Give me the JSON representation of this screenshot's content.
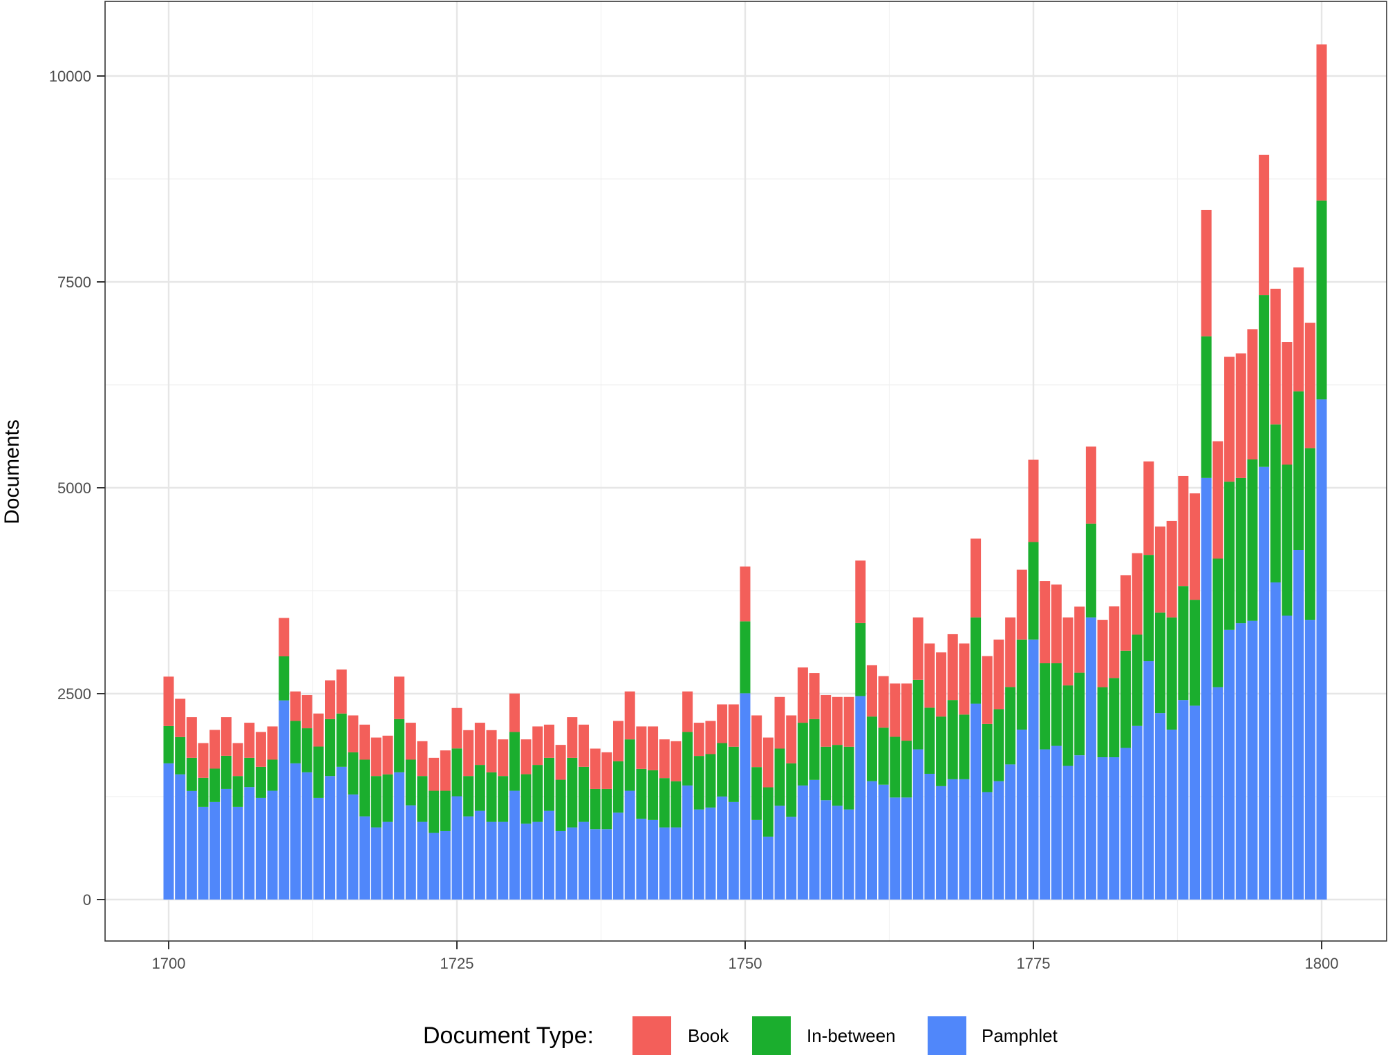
{
  "chart_data": {
    "type": "bar",
    "stacked": true,
    "title": "",
    "xlabel": "",
    "ylabel": "Documents",
    "xlim": [
      1696,
      1804
    ],
    "ylim": [
      -500,
      11000
    ],
    "x_ticks": [
      1700,
      1725,
      1750,
      1775,
      1800
    ],
    "y_ticks": [
      0,
      2500,
      5000,
      7500,
      10000
    ],
    "grid": true,
    "legend": {
      "title": "Document Type:",
      "position": "bottom",
      "entries": [
        "Book",
        "In-between",
        "Pamphlet"
      ]
    },
    "colors": {
      "Book": "#F35F5A",
      "In-between": "#1BAE2E",
      "Pamphlet": "#5087FA"
    },
    "stack_order_bottom_to_top": [
      "Pamphlet",
      "In-between",
      "Book"
    ],
    "x": [
      1700,
      1701,
      1702,
      1703,
      1704,
      1705,
      1706,
      1707,
      1708,
      1709,
      1710,
      1711,
      1712,
      1713,
      1714,
      1715,
      1716,
      1717,
      1718,
      1719,
      1720,
      1721,
      1722,
      1723,
      1724,
      1725,
      1726,
      1727,
      1728,
      1729,
      1730,
      1731,
      1732,
      1733,
      1734,
      1735,
      1736,
      1737,
      1738,
      1739,
      1740,
      1741,
      1742,
      1743,
      1744,
      1745,
      1746,
      1747,
      1748,
      1749,
      1750,
      1751,
      1752,
      1753,
      1754,
      1755,
      1756,
      1757,
      1758,
      1759,
      1760,
      1761,
      1762,
      1763,
      1764,
      1765,
      1766,
      1767,
      1768,
      1769,
      1770,
      1771,
      1772,
      1773,
      1774,
      1775,
      1776,
      1777,
      1778,
      1779,
      1780,
      1781,
      1782,
      1783,
      1784,
      1785,
      1786,
      1787,
      1788,
      1789,
      1790,
      1791,
      1792,
      1793,
      1794,
      1795,
      1796,
      1797,
      1798,
      1799,
      1800
    ],
    "totals": [
      2707,
      2438,
      2214,
      1900,
      2060,
      2214,
      1900,
      2147,
      2035,
      2102,
      3420,
      2527,
      2483,
      2259,
      2662,
      2793,
      2236,
      2124,
      1967,
      1990,
      2707,
      2147,
      1923,
      1721,
      1811,
      2326,
      2057,
      2147,
      2057,
      1945,
      2502,
      1945,
      2102,
      2124,
      1878,
      2214,
      2124,
      1833,
      1788,
      2169,
      2527,
      2102,
      2102,
      1945,
      1923,
      2527,
      2147,
      2169,
      2370,
      2370,
      4044,
      2236,
      1967,
      2460,
      2236,
      2818,
      2751,
      2483,
      2460,
      2460,
      4116,
      2845,
      2713,
      2623,
      2623,
      3426,
      3109,
      3001,
      3222,
      3109,
      4383,
      2956,
      3157,
      3426,
      4005,
      5340,
      3867,
      3825,
      3426,
      3558,
      5500,
      3397,
      3561,
      3939,
      4206,
      5320,
      4529,
      4598,
      5143,
      4932,
      8373,
      5565,
      6590,
      6632,
      6926,
      9044,
      7417,
      6770,
      7675,
      7004,
      10383
    ],
    "series": [
      {
        "name": "Pamphlet",
        "values": [
          1654,
          1520,
          1318,
          1125,
          1184,
          1343,
          1125,
          1366,
          1234,
          1321,
          2418,
          1654,
          1545,
          1234,
          1500,
          1612,
          1276,
          1010,
          876,
          943,
          1545,
          1144,
          943,
          809,
          831,
          1254,
          1010,
          1077,
          943,
          943,
          1321,
          921,
          943,
          1077,
          831,
          876,
          943,
          854,
          854,
          1055,
          1321,
          982,
          966,
          876,
          876,
          1385,
          1094,
          1117,
          1251,
          1184,
          2505,
          966,
          764,
          1139,
          1005,
          1385,
          1453,
          1206,
          1139,
          1094,
          2471,
          1437,
          1395,
          1239,
          1239,
          1824,
          1527,
          1377,
          1461,
          1461,
          2378,
          1305,
          1437,
          1641,
          2063,
          3157,
          1824,
          1866,
          1623,
          1752,
          3426,
          1728,
          1728,
          1841,
          2108,
          2894,
          2264,
          2063,
          2423,
          2354,
          5119,
          2579,
          3274,
          3355,
          3384,
          5254,
          3851,
          3448,
          4245,
          3397,
          6073
        ]
      },
      {
        "name": "In-between",
        "values": [
          453,
          453,
          403,
          353,
          406,
          403,
          375,
          355,
          378,
          378,
          535,
          515,
          535,
          624,
          691,
          647,
          512,
          689,
          624,
          577,
          646,
          555,
          557,
          512,
          490,
          581,
          490,
          558,
          602,
          557,
          714,
          601,
          692,
          644,
          624,
          845,
          669,
          489,
          489,
          624,
          624,
          605,
          604,
          599,
          560,
          650,
          650,
          649,
          649,
          672,
          873,
          643,
          599,
          694,
          649,
          762,
          738,
          650,
          739,
          762,
          886,
          785,
          692,
          737,
          690,
          845,
          803,
          845,
          962,
          785,
          1048,
          827,
          875,
          940,
          1094,
          1184,
          1045,
          1003,
          977,
          1003,
          1139,
          851,
          962,
          1181,
          1109,
          1291,
          1221,
          1363,
          1384,
          1286,
          1720,
          1561,
          1800,
          1764,
          1960,
          2086,
          1918,
          1833,
          1926,
          2084,
          2414
        ]
      },
      {
        "name": "Book",
        "values": [
          600,
          465,
          493,
          422,
          470,
          468,
          400,
          426,
          423,
          403,
          467,
          358,
          403,
          401,
          471,
          534,
          448,
          425,
          467,
          470,
          516,
          448,
          423,
          400,
          490,
          491,
          557,
          512,
          512,
          445,
          467,
          423,
          467,
          403,
          423,
          493,
          512,
          490,
          445,
          490,
          582,
          515,
          532,
          470,
          487,
          492,
          403,
          403,
          470,
          514,
          666,
          627,
          604,
          627,
          582,
          671,
          560,
          627,
          582,
          604,
          759,
          623,
          626,
          647,
          694,
          757,
          779,
          779,
          799,
          863,
          957,
          824,
          845,
          845,
          848,
          999,
          998,
          956,
          826,
          803,
          935,
          818,
          871,
          917,
          989,
          1135,
          1044,
          1172,
          1336,
          1292,
          1534,
          1425,
          1516,
          1513,
          1582,
          1704,
          1648,
          1489,
          1504,
          1523,
          1896
        ]
      }
    ]
  },
  "axes": {
    "y_title": "Documents",
    "y_tick_labels": [
      "0",
      "2500",
      "5000",
      "7500",
      "10000"
    ],
    "x_tick_labels": [
      "1700",
      "1725",
      "1750",
      "1775",
      "1800"
    ]
  },
  "legend": {
    "title": "Document Type:",
    "items": [
      {
        "label": "Book",
        "color": "#F35F5A"
      },
      {
        "label": "In-between",
        "color": "#1BAE2E"
      },
      {
        "label": "Pamphlet",
        "color": "#5087FA"
      }
    ]
  }
}
